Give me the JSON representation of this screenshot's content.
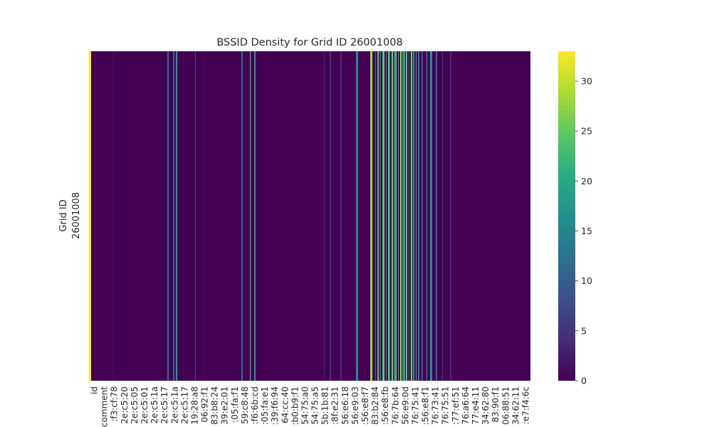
{
  "chart_data": {
    "type": "heatmap",
    "title": "BSSID Density for Grid ID 26001008",
    "ylabel": "Grid ID",
    "rows": [
      "26001008"
    ],
    "x_tick_labels": [
      "id",
      "comment",
      ":f3:cf:78",
      "2e:c5:20",
      "2e:c5:05",
      "2e:c5:01",
      "2e:c5:1a",
      "2e:c5:17",
      "2e:c5:1a",
      "2e:c5:17",
      "19:28:a8",
      "06:92:f1",
      "83:b8:24",
      "39:e2:01",
      ":05:fa:f1",
      "59:c8:48",
      ":f6:6b:cd",
      ":05:fa:e1",
      ":39:f6:94",
      "64:cc:40",
      ":b0:b9:f1",
      "54:75:a0",
      "54:75:a5",
      "5b:1b:81",
      ":8f:e2:31",
      "56:e6:18",
      "56:e9:03",
      ":56:e8:f7",
      "83:b2:84",
      ":56:e8:fb",
      "76:7b:64",
      "56:e9:0d",
      "76:75:41",
      ":56:e8:f1",
      "76:73:41",
      "76:75:51",
      ":77:ef:51",
      "76:a6:64",
      "77:e4:11",
      "34:62:80",
      "83:90:f1",
      "06:88:51",
      "34:62:11",
      ":e7:f4:6c"
    ],
    "colorbar": {
      "min": 0,
      "max": 33,
      "ticks": [
        0,
        5,
        10,
        15,
        20,
        25,
        30
      ]
    },
    "colormap": "viridis",
    "columns": [
      {
        "label": "id",
        "value": 33
      },
      {
        "label": "comment",
        "value": 33
      },
      {
        "value": 0
      },
      {
        "value": 0
      },
      {
        "value": 0
      },
      {
        "value": 0
      },
      {
        "value": 0
      },
      {
        "value": 0
      },
      {
        "value": 0
      },
      {
        "value": 0
      },
      {
        "value": 0
      },
      {
        "value": 0
      },
      {
        "value": 0
      },
      {
        "value": 0
      },
      {
        "value": 0
      },
      {
        "value": 0
      },
      {
        "value": 0
      },
      {
        "value": 0
      },
      {
        "value": 0
      },
      {
        "value": 0
      },
      {
        "value": 1
      },
      {
        "value": 0
      },
      {
        "value": 0
      },
      {
        "value": 0
      },
      {
        "value": 0
      },
      {
        "value": 0
      },
      {
        "value": 0
      },
      {
        "value": 0
      },
      {
        "value": 0
      },
      {
        "value": 0
      },
      {
        "value": 0
      },
      {
        "value": 0
      },
      {
        "value": 0
      },
      {
        "value": 0
      },
      {
        "value": 0
      },
      {
        "value": 0
      },
      {
        "value": 0
      },
      {
        "value": 0
      },
      {
        "value": 0
      },
      {
        "value": 0
      },
      {
        "value": 0
      },
      {
        "value": 0
      },
      {
        "value": 0
      },
      {
        "value": 0
      },
      {
        "value": 0
      },
      {
        "value": 0
      },
      {
        "value": 0
      },
      {
        "value": 0
      },
      {
        "value": 0
      },
      {
        "value": 0
      },
      {
        "value": 0
      },
      {
        "value": 0
      },
      {
        "value": 0
      },
      {
        "value": 0
      },
      {
        "value": 0
      },
      {
        "value": 0
      },
      {
        "value": 0
      },
      {
        "value": 0
      },
      {
        "value": 0
      },
      {
        "value": 0
      },
      {
        "value": 0
      },
      {
        "value": 0
      },
      {
        "value": 0
      },
      {
        "value": 0
      },
      {
        "value": 0
      },
      {
        "value": 0
      },
      {
        "value": 12
      },
      {
        "value": 0
      },
      {
        "value": 0
      },
      {
        "value": 0
      },
      {
        "value": 0
      },
      {
        "value": 12
      },
      {
        "value": 0
      },
      {
        "value": 18
      },
      {
        "value": 0
      },
      {
        "value": 0
      },
      {
        "value": 0
      },
      {
        "value": 0
      },
      {
        "value": 0
      },
      {
        "value": 0
      },
      {
        "value": 0
      },
      {
        "value": 0
      },
      {
        "value": 0
      },
      {
        "value": 0
      },
      {
        "value": 0
      },
      {
        "value": 0
      },
      {
        "value": 0
      },
      {
        "value": 0
      },
      {
        "value": 0
      },
      {
        "value": 8
      },
      {
        "value": 0
      },
      {
        "value": 0
      },
      {
        "value": 0
      },
      {
        "value": 0
      },
      {
        "value": 0
      },
      {
        "value": 0
      },
      {
        "value": 0
      },
      {
        "value": 0
      },
      {
        "value": 0
      },
      {
        "value": 0
      },
      {
        "value": 0
      },
      {
        "value": 0
      },
      {
        "value": 0
      },
      {
        "value": 0
      },
      {
        "value": 0
      },
      {
        "value": 0
      },
      {
        "value": 0
      },
      {
        "value": 0
      },
      {
        "value": 0
      },
      {
        "value": 0
      },
      {
        "value": 0
      },
      {
        "value": 0
      },
      {
        "value": 0
      },
      {
        "value": 0
      },
      {
        "value": 0
      },
      {
        "value": 0
      },
      {
        "value": 0
      },
      {
        "value": 0
      },
      {
        "value": 0
      },
      {
        "value": 0
      },
      {
        "value": 0
      },
      {
        "value": 0
      },
      {
        "value": 0
      },
      {
        "value": 0
      },
      {
        "value": 0
      },
      {
        "value": 0
      },
      {
        "value": 0
      },
      {
        "value": 0
      },
      {
        "value": 12
      },
      {
        "value": 0
      },
      {
        "value": 0
      },
      {
        "value": 0
      },
      {
        "value": 0
      },
      {
        "value": 0
      },
      {
        "value": 0
      },
      {
        "value": 25
      },
      {
        "value": 0
      },
      {
        "value": 0
      },
      {
        "value": 0
      },
      {
        "value": 18
      },
      {
        "value": 0
      },
      {
        "value": 0
      },
      {
        "value": 0
      },
      {
        "value": 0
      },
      {
        "value": 0
      },
      {
        "value": 0
      },
      {
        "value": 0
      },
      {
        "value": 0
      },
      {
        "value": 0
      },
      {
        "value": 0
      },
      {
        "value": 0
      },
      {
        "value": 0
      },
      {
        "value": 0
      },
      {
        "value": 0
      },
      {
        "value": 0
      },
      {
        "value": 0
      },
      {
        "value": 0
      },
      {
        "value": 0
      },
      {
        "value": 0
      },
      {
        "value": 0
      },
      {
        "value": 0
      },
      {
        "value": 0
      },
      {
        "value": 0
      },
      {
        "value": 0
      },
      {
        "value": 0
      },
      {
        "value": 0
      },
      {
        "value": 0
      },
      {
        "value": 0
      },
      {
        "value": 0
      },
      {
        "value": 0
      },
      {
        "value": 0
      },
      {
        "value": 0
      },
      {
        "value": 0
      },
      {
        "value": 0
      },
      {
        "value": 0
      },
      {
        "value": 0
      },
      {
        "value": 0
      },
      {
        "value": 0
      },
      {
        "value": 0
      },
      {
        "value": 0
      },
      {
        "value": 0
      },
      {
        "value": 0
      },
      {
        "value": 0
      },
      {
        "value": 0
      },
      {
        "value": 0
      },
      {
        "value": 0
      },
      {
        "value": 0
      },
      {
        "value": 0
      },
      {
        "value": 0
      },
      {
        "value": 0
      },
      {
        "value": 0
      },
      {
        "value": 0
      },
      {
        "value": 0
      },
      {
        "value": 0
      },
      {
        "value": 0
      },
      {
        "value": 0
      },
      {
        "value": 0
      },
      {
        "value": 3
      },
      {
        "value": 0
      },
      {
        "value": 0
      },
      {
        "value": 0
      },
      {
        "value": 0
      },
      {
        "value": 5
      },
      {
        "value": 0
      },
      {
        "value": 0
      },
      {
        "value": 0
      },
      {
        "value": 0
      },
      {
        "value": 0
      },
      {
        "value": 0
      },
      {
        "value": 0
      },
      {
        "value": 0
      },
      {
        "value": 4
      },
      {
        "value": 0
      },
      {
        "value": 0
      },
      {
        "value": 0
      },
      {
        "value": 0
      },
      {
        "value": 0
      },
      {
        "value": 0
      },
      {
        "value": 0
      },
      {
        "value": 0
      },
      {
        "value": 0
      },
      {
        "value": 0
      },
      {
        "value": 0
      },
      {
        "value": 0
      },
      {
        "value": 16
      },
      {
        "value": 16
      },
      {
        "value": 0
      },
      {
        "value": 0
      },
      {
        "value": 0
      },
      {
        "value": 0
      },
      {
        "value": 0
      },
      {
        "value": 0
      },
      {
        "value": 0
      },
      {
        "value": 0
      },
      {
        "value": 0
      },
      {
        "value": 0
      },
      {
        "value": 28
      },
      {
        "value": 28
      },
      {
        "value": 0
      },
      {
        "value": 0
      },
      {
        "value": 14
      },
      {
        "value": 0
      },
      {
        "value": 24
      },
      {
        "value": 0
      },
      {
        "value": 10
      },
      {
        "value": 0
      },
      {
        "value": 22
      },
      {
        "value": 26
      },
      {
        "value": 0
      },
      {
        "value": 18
      },
      {
        "value": 0
      },
      {
        "value": 24
      },
      {
        "value": 16
      },
      {
        "value": 0
      },
      {
        "value": 26
      },
      {
        "value": 0
      },
      {
        "value": 14
      },
      {
        "value": 24
      },
      {
        "value": 0
      },
      {
        "value": 22
      },
      {
        "value": 0
      },
      {
        "value": 28
      },
      {
        "value": 0
      },
      {
        "value": 16
      },
      {
        "value": 20
      },
      {
        "value": 0
      },
      {
        "value": 24
      },
      {
        "value": 0
      },
      {
        "value": 12
      },
      {
        "value": 0
      },
      {
        "value": 26
      },
      {
        "value": 0
      },
      {
        "value": 18
      },
      {
        "value": 0
      },
      {
        "value": 22
      },
      {
        "value": 0
      },
      {
        "value": 14
      },
      {
        "value": 0
      },
      {
        "value": 0
      },
      {
        "value": 8
      },
      {
        "value": 0
      },
      {
        "value": 0
      },
      {
        "value": 0
      },
      {
        "value": 20
      },
      {
        "value": 0
      },
      {
        "value": 0
      },
      {
        "value": 18
      },
      {
        "value": 16
      },
      {
        "value": 0
      },
      {
        "value": 0
      },
      {
        "value": 0
      },
      {
        "value": 12
      },
      {
        "value": 0
      },
      {
        "value": 0
      },
      {
        "value": 0
      },
      {
        "value": 0
      },
      {
        "value": 6
      },
      {
        "value": 0
      },
      {
        "value": 0
      },
      {
        "value": 0
      },
      {
        "value": 0
      },
      {
        "value": 0
      },
      {
        "value": 0
      },
      {
        "value": 4
      },
      {
        "value": 0
      },
      {
        "value": 0
      },
      {
        "value": 0
      },
      {
        "value": 0
      },
      {
        "value": 0
      },
      {
        "value": 0
      },
      {
        "value": 0
      },
      {
        "value": 0
      },
      {
        "value": 0
      },
      {
        "value": 0
      },
      {
        "value": 0
      },
      {
        "value": 0
      },
      {
        "value": 0
      },
      {
        "value": 0
      },
      {
        "value": 0
      },
      {
        "value": 0
      },
      {
        "value": 0
      },
      {
        "value": 0
      },
      {
        "value": 0
      },
      {
        "value": 0
      },
      {
        "value": 0
      },
      {
        "value": 0
      },
      {
        "value": 0
      },
      {
        "value": 0
      },
      {
        "value": 0
      },
      {
        "value": 0
      },
      {
        "value": 0
      },
      {
        "value": 0
      },
      {
        "value": 0
      },
      {
        "value": 0
      },
      {
        "value": 0
      },
      {
        "value": 0
      },
      {
        "value": 0
      },
      {
        "value": 0
      },
      {
        "value": 0
      },
      {
        "value": 0
      },
      {
        "value": 0
      },
      {
        "value": 0
      },
      {
        "value": 0
      },
      {
        "value": 0
      },
      {
        "value": 0
      },
      {
        "value": 0
      },
      {
        "value": 0
      },
      {
        "value": 0
      },
      {
        "value": 0
      },
      {
        "value": 0
      },
      {
        "value": 0
      },
      {
        "value": 0
      },
      {
        "value": 0
      },
      {
        "value": 0
      },
      {
        "value": 0
      },
      {
        "value": 0
      },
      {
        "value": 0
      },
      {
        "value": 0
      },
      {
        "value": 0
      },
      {
        "value": 0
      },
      {
        "value": 0
      },
      {
        "value": 0
      },
      {
        "value": 0
      },
      {
        "value": 0
      },
      {
        "value": 0
      },
      {
        "value": 0
      },
      {
        "value": 0
      },
      {
        "value": 0
      },
      {
        "value": 0
      },
      {
        "value": 0
      }
    ]
  }
}
